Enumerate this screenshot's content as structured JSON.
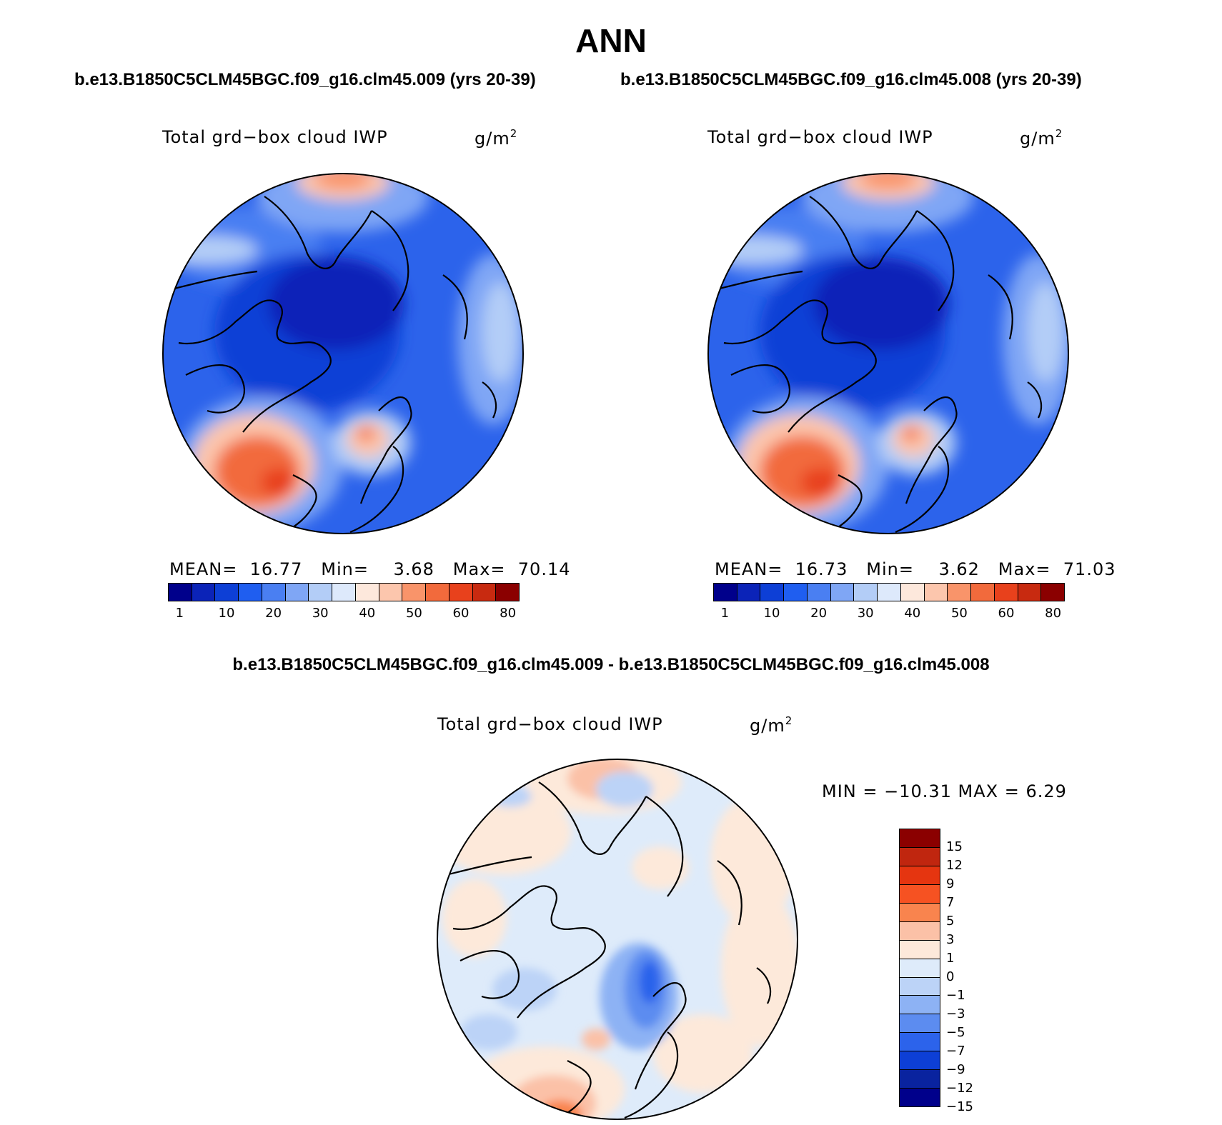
{
  "title": "ANN",
  "panels": [
    {
      "case_title": "b.e13.B1850C5CLM45BGC.f09_g16.clm45.009 (yrs 20-39)",
      "variable": "Total grd−box cloud IWP",
      "units_base": "g/m",
      "units_exp": "2",
      "stats": {
        "mean_label": "MEAN=",
        "mean": "16.77",
        "min_label": "Min=",
        "min": "3.68",
        "max_label": "Max=",
        "max": "70.14"
      }
    },
    {
      "case_title": "b.e13.B1850C5CLM45BGC.f09_g16.clm45.008 (yrs 20-39)",
      "variable": "Total grd−box cloud IWP",
      "units_base": "g/m",
      "units_exp": "2",
      "stats": {
        "mean_label": "MEAN=",
        "mean": "16.73",
        "min_label": "Min=",
        "min": "3.62",
        "max_label": "Max=",
        "max": "71.03"
      }
    }
  ],
  "diff_panel": {
    "title": "b.e13.B1850C5CLM45BGC.f09_g16.clm45.009 - b.e13.B1850C5CLM45BGC.f09_g16.clm45.008",
    "variable": "Total grd−box cloud IWP",
    "units_base": "g/m",
    "units_exp": "2",
    "minmax": "MIN = −10.31 MAX =    6.29"
  },
  "colorbar_top": {
    "colors": [
      "#00008b",
      "#0b23b8",
      "#0d3fd6",
      "#1f5ef0",
      "#4a7ff2",
      "#7fa6f5",
      "#b3cdf7",
      "#dde9fb",
      "#fde8dc",
      "#fcc6ad",
      "#f9946a",
      "#f26a3c",
      "#e8411c",
      "#c82a10",
      "#8b0000"
    ],
    "labels": [
      "1",
      "10",
      "20",
      "30",
      "40",
      "50",
      "60",
      "80"
    ]
  },
  "colorbar_diff": {
    "colors": [
      "#8b0000",
      "#c0260f",
      "#e53510",
      "#f65222",
      "#f9844e",
      "#fbc1a7",
      "#fde9da",
      "#deebfa",
      "#bcd3f7",
      "#8db2f4",
      "#5c8cf0",
      "#2c63eb",
      "#0d3fd6",
      "#09239f",
      "#00008b"
    ],
    "labels": [
      "15",
      "12",
      "9",
      "7",
      "5",
      "3",
      "1",
      "0",
      "−1",
      "−3",
      "−5",
      "−7",
      "−9",
      "−12",
      "−15"
    ]
  }
}
